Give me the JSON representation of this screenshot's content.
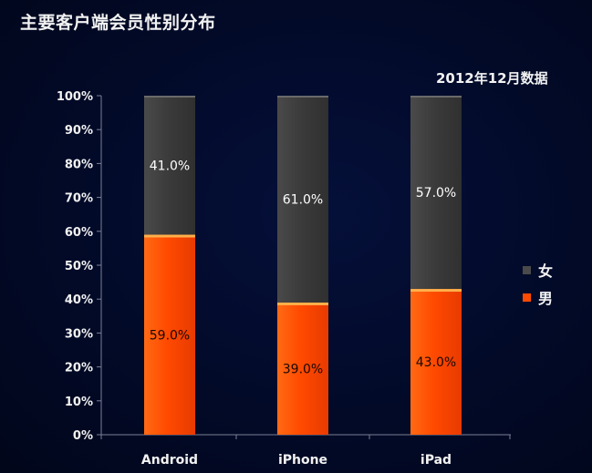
{
  "title": "主要客户端会员性别分布",
  "subtitle": "2012年12月数据",
  "colors": {
    "female": "#3c3c3c",
    "male": "#ff4a00",
    "axis": "#7a7f95",
    "text": "#f2f2f2"
  },
  "chart_data": {
    "type": "bar",
    "stacked": true,
    "percent": true,
    "categories": [
      "Android",
      "iPhone",
      "iPad"
    ],
    "series": [
      {
        "name": "男",
        "values": [
          59.0,
          39.0,
          43.0
        ],
        "labels": [
          "59.0%",
          "39.0%",
          "43.0%"
        ],
        "color": "#ff4a00"
      },
      {
        "name": "女",
        "values": [
          41.0,
          61.0,
          57.0
        ],
        "labels": [
          "41.0%",
          "61.0%",
          "57.0%"
        ],
        "color": "#3c3c3c"
      }
    ],
    "yticks": [
      "0%",
      "10%",
      "20%",
      "30%",
      "40%",
      "50%",
      "60%",
      "70%",
      "80%",
      "90%",
      "100%"
    ],
    "ylim": [
      0,
      100
    ],
    "grid": false,
    "legend": "right",
    "legend_order": [
      "女",
      "男"
    ]
  }
}
